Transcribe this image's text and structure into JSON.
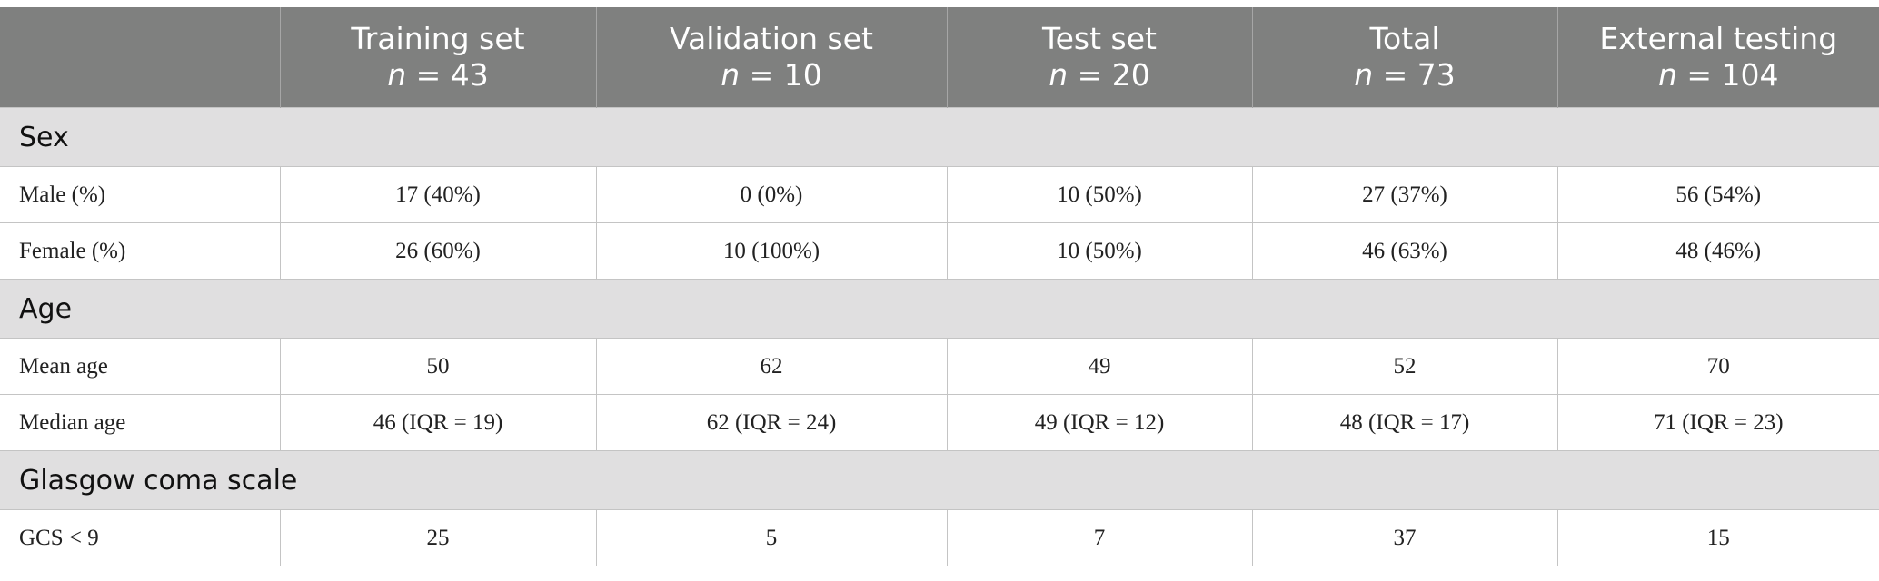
{
  "columns": [
    {
      "label": "",
      "n": ""
    },
    {
      "label": "Training set",
      "n": "43"
    },
    {
      "label": "Validation set",
      "n": "10"
    },
    {
      "label": "Test set",
      "n": "20"
    },
    {
      "label": "Total",
      "n": "73"
    },
    {
      "label": "External testing",
      "n": "104"
    }
  ],
  "n_symbol": "n",
  "n_equals": " = ",
  "sections": [
    {
      "title": "Sex",
      "rows": [
        {
          "label": "Male (%)",
          "cells": [
            "17 (40%)",
            "0 (0%)",
            "10 (50%)",
            "27 (37%)",
            "56 (54%)"
          ]
        },
        {
          "label": "Female (%)",
          "cells": [
            "26 (60%)",
            "10 (100%)",
            "10 (50%)",
            "46 (63%)",
            "48 (46%)"
          ]
        }
      ]
    },
    {
      "title": "Age",
      "rows": [
        {
          "label": "Mean age",
          "cells": [
            "50",
            "62",
            "49",
            "52",
            "70"
          ]
        },
        {
          "label": "Median age",
          "cells": [
            "46 (IQR = 19)",
            "62 (IQR = 24)",
            "49 (IQR = 12)",
            "48 (IQR = 17)",
            "71 (IQR = 23)"
          ]
        }
      ]
    },
    {
      "title": "Glasgow coma scale",
      "rows": [
        {
          "label": "GCS < 9",
          "cells": [
            "25",
            "5",
            "7",
            "37",
            "15"
          ]
        }
      ]
    }
  ]
}
